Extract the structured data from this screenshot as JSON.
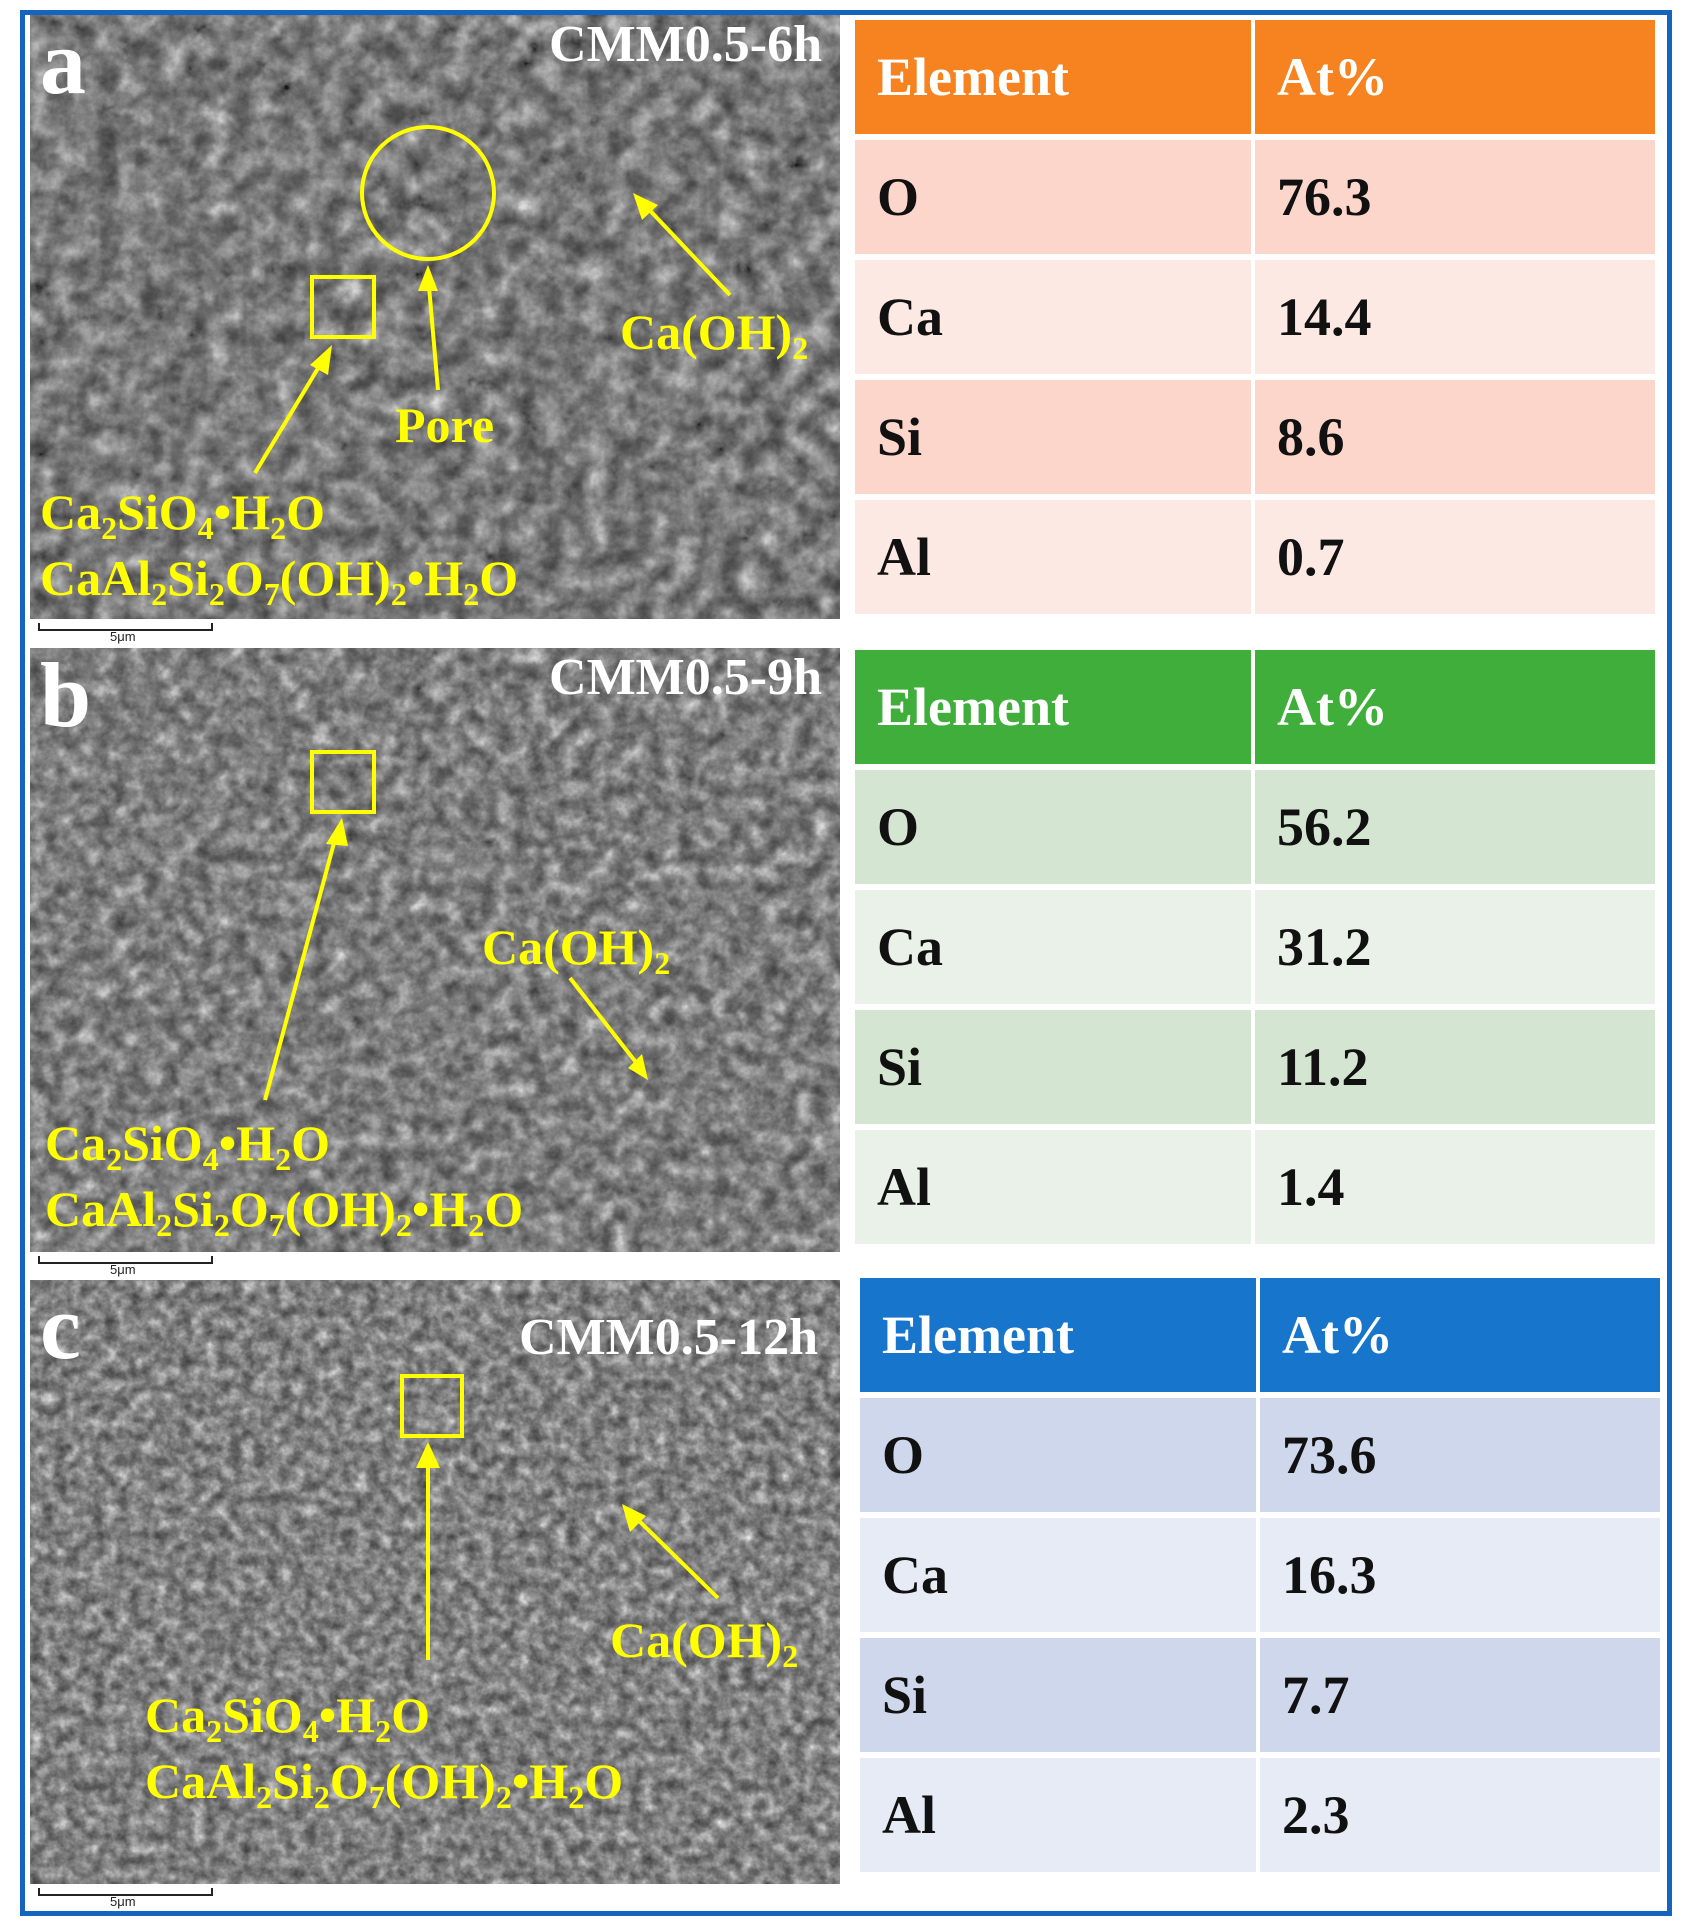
{
  "panels": [
    {
      "letter": "a",
      "sample": "CMM0.5-6h",
      "scale": "5μm",
      "labels": {
        "pore": "Pore",
        "portlandite": "Ca(OH)",
        "portlandite_sub": "2"
      },
      "phase_line1": [
        "Ca",
        "2",
        "SiO",
        "4",
        "•H",
        "2",
        "O"
      ],
      "phase_line2": [
        "CaAl",
        "2",
        "Si",
        "2",
        "O",
        "7",
        "(OH)",
        "2",
        "•H",
        "2",
        "O"
      ],
      "table": {
        "header": [
          "Element",
          "At%"
        ],
        "rows": [
          [
            "O",
            "76.3"
          ],
          [
            "Ca",
            "14.4"
          ],
          [
            "Si",
            "8.6"
          ],
          [
            "Al",
            "0.7"
          ]
        ],
        "colors": {
          "header": "#f68220",
          "row_dark": "#fcd5cb",
          "row_light": "#fde9e3"
        }
      }
    },
    {
      "letter": "b",
      "sample": "CMM0.5-9h",
      "scale": "5μm",
      "labels": {
        "portlandite": "Ca(OH)",
        "portlandite_sub": "2"
      },
      "phase_line1": [
        "Ca",
        "2",
        "SiO",
        "4",
        "•H",
        "2",
        "O"
      ],
      "phase_line2": [
        "CaAl",
        "2",
        "Si",
        "2",
        "O",
        "7",
        "(OH)",
        "2",
        "•H",
        "2",
        "O"
      ],
      "table": {
        "header": [
          "Element",
          "At%"
        ],
        "rows": [
          [
            "O",
            "56.2"
          ],
          [
            "Ca",
            "31.2"
          ],
          [
            "Si",
            "11.2"
          ],
          [
            "Al",
            "1.4"
          ]
        ],
        "colors": {
          "header": "#3fae3a",
          "row_dark": "#d4e6d1",
          "row_light": "#e9f1e8"
        }
      }
    },
    {
      "letter": "c",
      "sample": "CMM0.5-12h",
      "scale": "5μm",
      "labels": {
        "portlandite": "Ca(OH)",
        "portlandite_sub": "2"
      },
      "phase_line1": [
        "Ca",
        "2",
        "SiO",
        "4",
        "•H",
        "2",
        "O"
      ],
      "phase_line2": [
        "CaAl",
        "2",
        "Si",
        "2",
        "O",
        "7",
        "(OH)",
        "2",
        "•H",
        "2",
        "O"
      ],
      "table": {
        "header": [
          "Element",
          "At%"
        ],
        "rows": [
          [
            "O",
            "73.6"
          ],
          [
            "Ca",
            "16.3"
          ],
          [
            "Si",
            "7.7"
          ],
          [
            "Al",
            "2.3"
          ]
        ],
        "colors": {
          "header": "#1875cc",
          "row_dark": "#cfd7ec",
          "row_light": "#e7ebf5"
        }
      }
    }
  ],
  "colors": {
    "annotation": "#ffff00",
    "frame": "#1565c0"
  }
}
